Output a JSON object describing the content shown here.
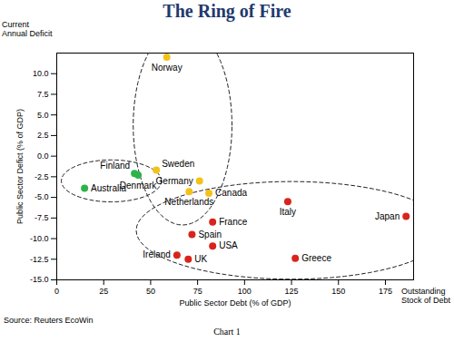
{
  "chart_data": {
    "type": "scatter",
    "title": "The Ring of Fire",
    "x_label": "Public Sector Debt (% of GDP)",
    "y_label": "Public Sector Defict (% of GDP)",
    "annotations": [
      "Current Annual Deficit",
      "Outstanding Stock of Debt",
      "Source: Reuters EcoWin",
      "Chart 1"
    ],
    "labels": [
      "Norway",
      "Finland",
      "Denmark",
      "Australia",
      "Sweden",
      "Germany",
      "Netherlands",
      "Canada",
      "Italy",
      "France",
      "Spain",
      "USA",
      "Ireland",
      "UK",
      "Greece",
      "Japan"
    ],
    "x": [
      58.6,
      41.4,
      43.3,
      14.8,
      53,
      76,
      70.5,
      81,
      123,
      83,
      72,
      83,
      64,
      70,
      127,
      186
    ],
    "values": [
      12.0,
      -2.1,
      -2.3,
      -3.9,
      -1.7,
      -3.0,
      -4.3,
      -4.5,
      -5.5,
      -8.0,
      -9.5,
      -10.9,
      -12.0,
      -12.5,
      -12.4,
      -7.3
    ],
    "colors": [
      "#f2c21b",
      "#2db34a",
      "#2db34a",
      "#2db34a",
      "#f2c21b",
      "#f2c21b",
      "#f2c21b",
      "#f2c21b",
      "#d9241c",
      "#d9241c",
      "#d9241c",
      "#d9241c",
      "#d9241c",
      "#d9241c",
      "#d9241c",
      "#d9241c"
    ],
    "xlim": [
      0,
      190
    ],
    "xticks": [
      0,
      25,
      50,
      75,
      100,
      125,
      150,
      175
    ],
    "ylim": [
      -15,
      12.5
    ],
    "yticks": [
      {
        "value": -15,
        "label": "-15.0"
      },
      -12.5,
      {
        "value": -10,
        "label": "-10.0"
      },
      -7.5,
      {
        "value": -5,
        "label": "-5.0"
      },
      -2.5,
      {
        "value": 0,
        "label": "0.0"
      },
      2.5,
      {
        "value": 5,
        "label": "5.0"
      },
      7.5,
      {
        "value": 10,
        "label": "10.0"
      }
    ],
    "grid": false,
    "marker": "circle"
  }
}
